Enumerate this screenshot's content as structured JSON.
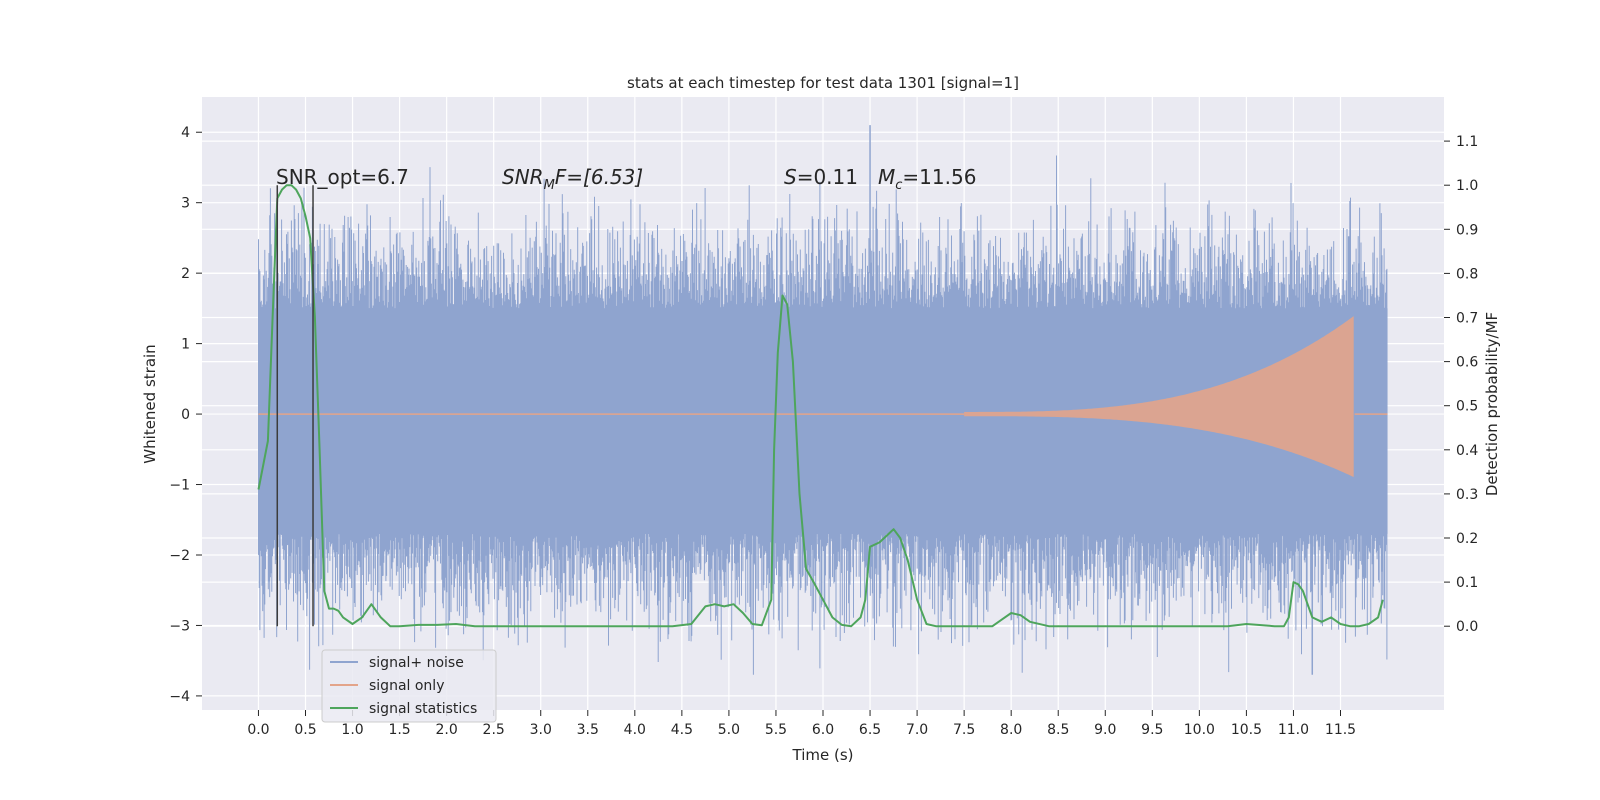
{
  "chart_data": {
    "type": "line",
    "title": "stats at each timestep for test data 1301 [signal=1]",
    "xlabel": "Time (s)",
    "ylabel": "Whitened strain",
    "ylabel_right": "Detection probability/MF",
    "xlim": [
      -0.6,
      12.6
    ],
    "ylim": [
      -4.2,
      4.5
    ],
    "ylim_right": [
      -0.19,
      1.2
    ],
    "x_ticks": [
      0.0,
      0.5,
      1.0,
      1.5,
      2.0,
      2.5,
      3.0,
      3.5,
      4.0,
      4.5,
      5.0,
      5.5,
      6.0,
      6.5,
      7.0,
      7.5,
      8.0,
      8.5,
      9.0,
      9.5,
      10.0,
      10.5,
      11.0,
      11.5
    ],
    "x_tick_labels": [
      "0.0",
      "0.5",
      "1.0",
      "1.5",
      "2.0",
      "2.5",
      "3.0",
      "3.5",
      "4.0",
      "4.5",
      "5.0",
      "5.5",
      "6.0",
      "6.5",
      "7.0",
      "7.5",
      "8.0",
      "8.5",
      "9.0",
      "9.5",
      "10.0",
      "10.5",
      "11.0",
      "11.5"
    ],
    "y_ticks": [
      4,
      3,
      2,
      1,
      0,
      -1,
      -2,
      -3,
      -4
    ],
    "y_tick_labels": [
      "4",
      "3",
      "2",
      "1",
      "0",
      "−1",
      "−2",
      "−3",
      "−4"
    ],
    "y_right_ticks": [
      1.1,
      1.0,
      0.9,
      0.8,
      0.7,
      0.6,
      0.5,
      0.4,
      0.3,
      0.2,
      0.1,
      0.0
    ],
    "y_right_tick_labels": [
      "1.1",
      "1.0",
      "0.9",
      "0.8",
      "0.7",
      "0.6",
      "0.5",
      "0.4",
      "0.3",
      "0.2",
      "0.1",
      "0.0"
    ],
    "grid": true,
    "legend_position": "lower-left",
    "annotations": {
      "snr_opt": "SNR_opt=6.7",
      "snr_mf_sym": "SNR",
      "snr_mf_sub": "M",
      "snr_mf_rest": "F=[6.53]",
      "s_sym": "S",
      "s_rest": "=0.11",
      "mc_sym": "M",
      "mc_sub": "c",
      "mc_rest": "=11.56"
    },
    "series": [
      {
        "name": "signal+ noise",
        "color": "#8fa4cf",
        "axis": "left",
        "x_range": [
          0.0,
          12.0
        ],
        "envelope_typical": [
          -1.7,
          1.5
        ],
        "extremes": [
          -3.7,
          4.1
        ]
      },
      {
        "name": "signal only",
        "color": "#e3a48a",
        "axis": "left",
        "chirp": {
          "start": 7.5,
          "merger": 11.65,
          "end": 12.0,
          "peak_amplitude_top": 1.4,
          "peak_amplitude_bottom": -0.9
        }
      },
      {
        "name": "signal statistics",
        "color": "#4ea55c",
        "axis": "right",
        "x": [
          0.0,
          0.1,
          0.15,
          0.2,
          0.25,
          0.3,
          0.35,
          0.4,
          0.45,
          0.5,
          0.55,
          0.6,
          0.65,
          0.7,
          0.75,
          0.8,
          0.85,
          0.9,
          1.0,
          1.1,
          1.2,
          1.3,
          1.4,
          1.5,
          1.7,
          1.9,
          2.1,
          2.3,
          2.5,
          3.0,
          3.5,
          4.0,
          4.4,
          4.6,
          4.75,
          4.85,
          4.95,
          5.05,
          5.15,
          5.25,
          5.35,
          5.45,
          5.48,
          5.52,
          5.57,
          5.62,
          5.68,
          5.75,
          5.82,
          5.9,
          6.0,
          6.1,
          6.2,
          6.3,
          6.4,
          6.45,
          6.5,
          6.6,
          6.7,
          6.75,
          6.82,
          6.9,
          7.0,
          7.1,
          7.2,
          7.5,
          7.8,
          7.9,
          8.0,
          8.1,
          8.2,
          8.4,
          8.8,
          9.2,
          9.5,
          10.0,
          10.3,
          10.5,
          10.8,
          10.9,
          10.95,
          11.0,
          11.05,
          11.1,
          11.15,
          11.2,
          11.3,
          11.4,
          11.5,
          11.6,
          11.7,
          11.8,
          11.9,
          11.95
        ],
        "values": [
          0.31,
          0.42,
          0.7,
          0.97,
          0.99,
          1.0,
          1.0,
          0.99,
          0.97,
          0.93,
          0.88,
          0.7,
          0.4,
          0.08,
          0.04,
          0.04,
          0.035,
          0.02,
          0.005,
          0.02,
          0.05,
          0.02,
          0.0,
          0.0,
          0.003,
          0.003,
          0.005,
          0.0,
          0.0,
          0.0,
          0.0,
          0.0,
          0.0,
          0.005,
          0.045,
          0.05,
          0.045,
          0.05,
          0.03,
          0.005,
          0.002,
          0.06,
          0.4,
          0.62,
          0.75,
          0.73,
          0.6,
          0.3,
          0.13,
          0.1,
          0.06,
          0.02,
          0.003,
          0.0,
          0.02,
          0.06,
          0.18,
          0.19,
          0.21,
          0.22,
          0.2,
          0.15,
          0.06,
          0.005,
          0.0,
          0.0,
          0.0,
          0.015,
          0.03,
          0.025,
          0.01,
          0.0,
          0.0,
          0.0,
          0.0,
          0.0,
          0.0,
          0.005,
          0.0,
          0.0,
          0.02,
          0.1,
          0.095,
          0.08,
          0.05,
          0.02,
          0.01,
          0.02,
          0.005,
          0.0,
          0.0,
          0.005,
          0.02,
          0.06
        ]
      }
    ],
    "vertical_lines": [
      {
        "x": 0.2,
        "color": "#3c3c3c"
      },
      {
        "x": 0.58,
        "color": "#3c3c3c"
      }
    ]
  }
}
